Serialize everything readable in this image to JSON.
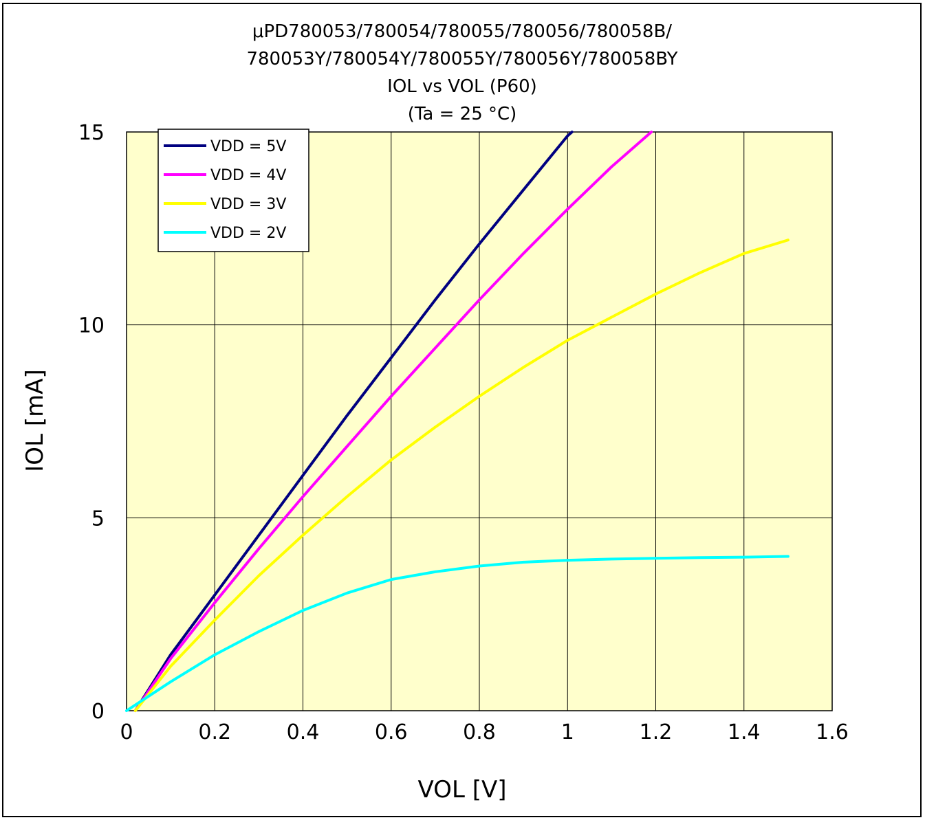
{
  "chart_data": {
    "type": "line",
    "title_lines": [
      "μPD780053/780054/780055/780056/780058B/",
      "780053Y/780054Y/780055Y/780056Y/780058BY",
      "IOL vs VOL (P60)",
      "(Ta = 25 °C)"
    ],
    "xlabel": "VOL [V]",
    "ylabel": "IOL [mA]",
    "xlim": [
      0,
      1.6
    ],
    "ylim": [
      0,
      15
    ],
    "xticks": [
      0,
      0.2,
      0.4,
      0.6,
      0.8,
      1,
      1.2,
      1.4,
      1.6
    ],
    "yticks": [
      0,
      5,
      10,
      15
    ],
    "grid": true,
    "plot_background": "#FFFFCC",
    "legend_position": "top-left",
    "series": [
      {
        "name": "VDD = 5V",
        "color": "#000080",
        "x": [
          0.02,
          0.1,
          0.2,
          0.3,
          0.4,
          0.5,
          0.6,
          0.7,
          0.8,
          0.9,
          1.0,
          1.01
        ],
        "y": [
          0,
          1.45,
          3.0,
          4.55,
          6.1,
          7.65,
          9.15,
          10.65,
          12.1,
          13.5,
          14.9,
          15.0
        ]
      },
      {
        "name": "VDD = 4V",
        "color": "#FF00FF",
        "x": [
          0.02,
          0.1,
          0.2,
          0.3,
          0.4,
          0.5,
          0.6,
          0.7,
          0.8,
          0.9,
          1.0,
          1.1,
          1.19
        ],
        "y": [
          0,
          1.35,
          2.8,
          4.2,
          5.55,
          6.85,
          8.15,
          9.4,
          10.65,
          11.85,
          13.0,
          14.1,
          15.0
        ]
      },
      {
        "name": "VDD = 3V",
        "color": "#FFFF00",
        "x": [
          0.02,
          0.1,
          0.2,
          0.3,
          0.4,
          0.5,
          0.6,
          0.7,
          0.8,
          0.9,
          1.0,
          1.1,
          1.2,
          1.3,
          1.4,
          1.5
        ],
        "y": [
          0,
          1.15,
          2.35,
          3.5,
          4.55,
          5.55,
          6.5,
          7.35,
          8.15,
          8.9,
          9.6,
          10.2,
          10.8,
          11.35,
          11.85,
          12.2
        ]
      },
      {
        "name": "VDD = 2V",
        "color": "#00FFFF",
        "x": [
          0.0,
          0.1,
          0.2,
          0.3,
          0.4,
          0.5,
          0.6,
          0.7,
          0.8,
          0.9,
          1.0,
          1.1,
          1.2,
          1.3,
          1.4,
          1.5
        ],
        "y": [
          0,
          0.75,
          1.45,
          2.05,
          2.6,
          3.05,
          3.4,
          3.6,
          3.75,
          3.85,
          3.9,
          3.93,
          3.95,
          3.97,
          3.98,
          4.0
        ]
      }
    ]
  }
}
